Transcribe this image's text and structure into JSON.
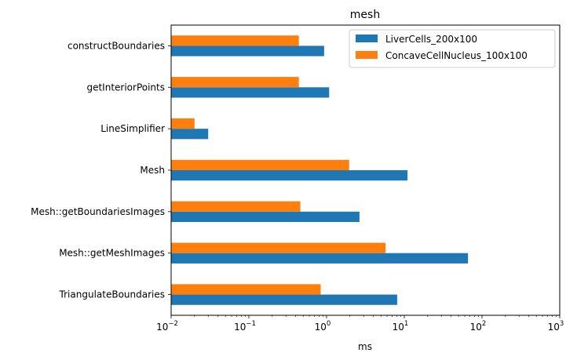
{
  "chart_data": {
    "type": "bar",
    "orientation": "horizontal",
    "title": "mesh",
    "xlabel": "ms",
    "ylabel": "",
    "xscale": "log",
    "xlim": [
      0.01,
      1000
    ],
    "x_ticks": [
      {
        "value": 0.01,
        "base": "10",
        "exp": "−2"
      },
      {
        "value": 0.1,
        "base": "10",
        "exp": "−1"
      },
      {
        "value": 1,
        "base": "10",
        "exp": "0"
      },
      {
        "value": 10,
        "base": "10",
        "exp": "1"
      },
      {
        "value": 100,
        "base": "10",
        "exp": "2"
      },
      {
        "value": 1000,
        "base": "10",
        "exp": "3"
      }
    ],
    "grid": false,
    "legend_position": "top-right",
    "categories": [
      "constructBoundaries",
      "getInteriorPoints",
      "LineSimplifier",
      "Mesh",
      "Mesh::getBoundariesImages",
      "Mesh::getMeshImages",
      "TriangulateBoundaries"
    ],
    "series": [
      {
        "name": "LiverCells_200x100",
        "color": "#1f77b4",
        "values": [
          0.93,
          1.08,
          0.03,
          11.0,
          2.65,
          66.0,
          8.1
        ]
      },
      {
        "name": "ConcaveCellNucleus_100x100",
        "color": "#ff7f0e",
        "values": [
          0.44,
          0.44,
          0.02,
          1.95,
          0.46,
          5.75,
          0.84
        ]
      }
    ]
  }
}
